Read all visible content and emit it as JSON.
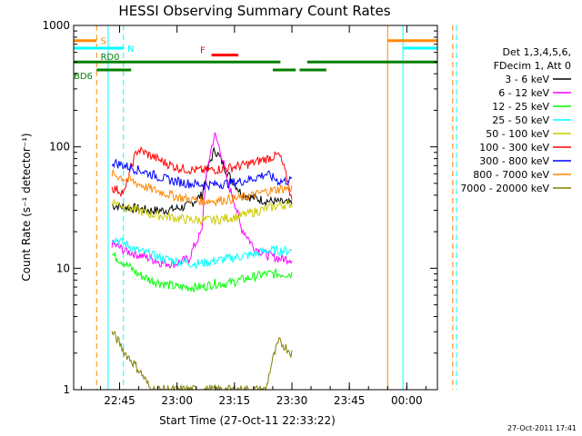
{
  "chart_data": {
    "type": "line",
    "title": "HESSI Observing Summary Count Rates",
    "xlabel": "Start Time (27-Oct-11 22:33:22)",
    "ylabel": "Count Rate (s⁻¹ detector⁻¹)",
    "y_scale": "log",
    "ylim": [
      1,
      1000
    ],
    "xlim_minutes_from_start": [
      0,
      95
    ],
    "x_ticks": [
      "22:45",
      "23:00",
      "23:15",
      "23:30",
      "23:45",
      "00:00"
    ],
    "y_ticks": [
      "1",
      "10",
      "100",
      "1000"
    ],
    "legend_header": [
      "Det 1,3,4,5,6,",
      "FDecim 1, Att 0"
    ],
    "legend_placement": "right",
    "timestamp": "27-Oct-2011 17:41",
    "series": [
      {
        "name": "3 - 6 keV",
        "color": "#000000",
        "start": "22:43",
        "end": "23:30",
        "values": [
          33,
          32,
          31,
          30,
          30,
          31,
          33,
          40,
          95,
          60,
          42,
          38,
          36,
          35,
          34
        ]
      },
      {
        "name": "6 - 12 keV",
        "color": "#ff00ff",
        "start": "22:43",
        "end": "23:30",
        "values": [
          16,
          14,
          13,
          12,
          11,
          11,
          12,
          20,
          125,
          50,
          22,
          15,
          13,
          12,
          12
        ]
      },
      {
        "name": "12 - 25 keV",
        "color": "#00ff00",
        "start": "22:43",
        "end": "23:30",
        "values": [
          13,
          11,
          9,
          8,
          7.5,
          7,
          7,
          7,
          7.5,
          7.5,
          8,
          8.5,
          9,
          9,
          9
        ]
      },
      {
        "name": "25 - 50 keV",
        "color": "#00ffff",
        "start": "22:43",
        "end": "23:30",
        "values": [
          18,
          16,
          14,
          13,
          12,
          11.5,
          11,
          11,
          11.5,
          12,
          12.5,
          13,
          14,
          14,
          14
        ]
      },
      {
        "name": "50 - 100 keV",
        "color": "#cccc00",
        "start": "22:43",
        "end": "23:30",
        "values": [
          36,
          32,
          30,
          28,
          27,
          26,
          25,
          25,
          25,
          26,
          27,
          29,
          31,
          33,
          34
        ]
      },
      {
        "name": "100 - 300 keV",
        "color": "#ff0000",
        "start": "22:43",
        "end": "23:30",
        "values": [
          46,
          42,
          95,
          85,
          75,
          68,
          65,
          64,
          65,
          67,
          70,
          74,
          80,
          86,
          35
        ]
      },
      {
        "name": "300 - 800 keV",
        "color": "#0000ff",
        "start": "22:43",
        "end": "23:30",
        "values": [
          75,
          70,
          65,
          60,
          55,
          52,
          50,
          49,
          49,
          50,
          52,
          55,
          60,
          52,
          53
        ]
      },
      {
        "name": "800 - 7000 keV",
        "color": "#ff8800",
        "start": "22:43",
        "end": "23:30",
        "values": [
          60,
          55,
          50,
          45,
          42,
          39,
          37,
          36,
          36,
          37,
          38,
          40,
          43,
          45,
          46
        ]
      },
      {
        "name": "7000 - 20000 keV",
        "color": "#808000",
        "start": "22:43",
        "end": "23:30",
        "values": [
          3,
          2,
          1.5,
          1,
          1,
          1,
          1,
          1,
          1,
          1,
          1,
          1,
          1,
          2.5,
          2
        ]
      }
    ],
    "flags": [
      {
        "label": "S",
        "color": "#ff8800",
        "value": 750
      },
      {
        "label": "N",
        "color": "#00ffff",
        "value": 650
      },
      {
        "label": "RD0",
        "color": "#008000",
        "value": 500
      },
      {
        "label": "BD6",
        "color": "#008000",
        "value": 430
      },
      {
        "label": "F",
        "color": "#ff0000",
        "value": 570
      }
    ],
    "markers": [
      {
        "label": "S",
        "color": "#ff8800"
      },
      {
        "label": "N",
        "color": "#00ffff"
      }
    ]
  }
}
